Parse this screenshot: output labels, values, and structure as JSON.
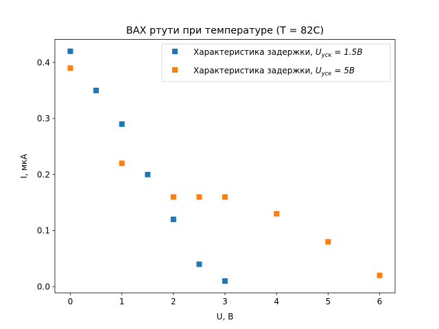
{
  "chart_data": {
    "type": "scatter",
    "title": "ВАХ ртути при температуре (T = 82C)",
    "xlabel": "U, В",
    "ylabel": "I, мкА",
    "xlim": [
      -0.3,
      6.3
    ],
    "ylim": [
      -0.011,
      0.441
    ],
    "x_ticks": [
      0,
      1,
      2,
      3,
      4,
      5,
      6
    ],
    "x_tick_labels": [
      "0",
      "1",
      "2",
      "3",
      "4",
      "5",
      "6"
    ],
    "y_ticks": [
      0.0,
      0.1,
      0.2,
      0.3,
      0.4
    ],
    "y_tick_labels": [
      "0.0",
      "0.1",
      "0.2",
      "0.3",
      "0.4"
    ],
    "grid": false,
    "legend_position": "top-right",
    "marker": "square",
    "series": [
      {
        "name": "Характеристика задержки, U_уск = 1.5В",
        "legend_prefix": "Характеристика задержки, ",
        "legend_var": "U",
        "legend_sub": "уск",
        "legend_suffix": " = 1.5В",
        "color": "#1f77b4",
        "x": [
          0,
          0.5,
          1,
          1.5,
          2,
          2.5,
          3
        ],
        "y": [
          0.42,
          0.35,
          0.29,
          0.2,
          0.12,
          0.04,
          0.01
        ]
      },
      {
        "name": "Характеристика задержки, U_уск = 5В",
        "legend_prefix": "Характеристика задержки, ",
        "legend_var": "U",
        "legend_sub": "уск",
        "legend_suffix": " = 5В",
        "color": "#ff7f0e",
        "x": [
          0,
          1,
          2,
          2.5,
          3,
          4,
          5,
          6
        ],
        "y": [
          0.39,
          0.22,
          0.16,
          0.16,
          0.16,
          0.13,
          0.08,
          0.02
        ]
      }
    ]
  }
}
